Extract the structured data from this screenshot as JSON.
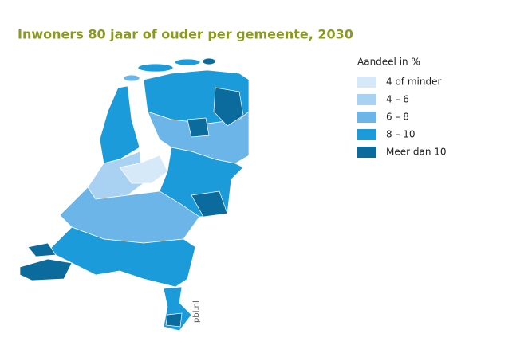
{
  "title": "Inwoners 80 jaar of ouder per gemeente, 2030",
  "legend": {
    "title": "Aandeel in %",
    "items": [
      {
        "label": "4 of minder",
        "color": "#d5e9f8"
      },
      {
        "label": "4 – 6",
        "color": "#a9d1f1"
      },
      {
        "label": "6 – 8",
        "color": "#6bb5e8"
      },
      {
        "label": "8 – 10",
        "color": "#1b9bd9"
      },
      {
        "label": "Meer dan 10",
        "color": "#0b6b9d"
      }
    ]
  },
  "credit": "pbl.nl"
}
